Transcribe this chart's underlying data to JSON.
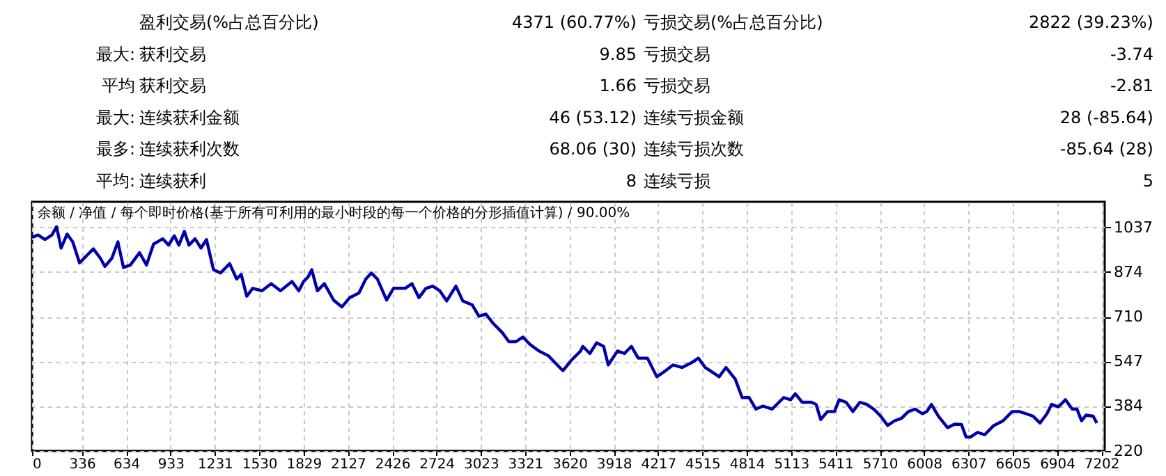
{
  "chart_data": [
    {
      "type": "other",
      "annotations": [
        "盈利交易(%占总百分比)",
        "4371 (60.77%)",
        "亏损交易(%占总百分比)",
        "2822 (39.23%)",
        "最大:",
        "获利交易",
        "9.85",
        "亏损交易",
        "-3.74",
        "平均",
        "获利交易",
        "1.66",
        "亏损交易",
        "-2.81",
        "最大:",
        "连续获利金额",
        "46 (53.12)",
        "连续亏损金额",
        "28 (-85.64)",
        "最多:",
        "连续获利次数",
        "68.06 (30)",
        "连续亏损次数",
        "-85.64 (28)",
        "平均:",
        "连续获利",
        "8",
        "连续亏损",
        "5"
      ]
    },
    {
      "type": "line",
      "title": "余额 / 净值 / 每个即时价格(基于所有可利用的最小时段的每一个价格的分形插值计算) / 90.00%",
      "color": "#0000a8",
      "x": [
        0,
        40,
        87,
        134,
        165,
        196,
        236,
        274,
        320,
        367,
        413,
        460,
        491,
        538,
        578,
        616,
        662,
        724,
        771,
        818,
        880,
        920,
        958,
        989,
        1026,
        1057,
        1098,
        1138,
        1175,
        1222,
        1269,
        1331,
        1378,
        1409,
        1446,
        1486,
        1549,
        1611,
        1673,
        1751,
        1797,
        1829,
        1860,
        1884,
        1922,
        1969,
        2031,
        2087,
        2140,
        2202,
        2248,
        2286,
        2326,
        2388,
        2435,
        2513,
        2559,
        2606,
        2653,
        2699,
        2746,
        2793,
        2855,
        2901,
        2964,
        3010,
        3057,
        3104,
        3166,
        3212,
        3259,
        3306,
        3352,
        3415,
        3477,
        3523,
        3576,
        3632,
        3695,
        3710,
        3757,
        3803,
        3850,
        3881,
        3943,
        3990,
        4037,
        4083,
        4145,
        4208,
        4254,
        4317,
        4379,
        4441,
        4488,
        4534,
        4581,
        4628,
        4674,
        4736,
        4783,
        4830,
        4876,
        4923,
        4985,
        5063,
        5110,
        5141,
        5187,
        5250,
        5281,
        5312,
        5358,
        5405,
        5436,
        5483,
        5529,
        5576,
        5623,
        5669,
        5716,
        5763,
        5809,
        5856,
        5903,
        5949,
        5996,
        6027,
        6058,
        6105,
        6167,
        6214,
        6260,
        6291,
        6322,
        6369,
        6416,
        6478,
        6540,
        6602,
        6649,
        6696,
        6742,
        6789,
        6836,
        6867,
        6913,
        6960,
        7007,
        7038,
        7069,
        7100,
        7147,
        7172
      ],
      "values": [
        1000,
        1009,
        992,
        1009,
        1039,
        961,
        1012,
        984,
        907,
        933,
        958,
        924,
        894,
        924,
        984,
        890,
        899,
        944,
        899,
        975,
        995,
        972,
        1006,
        972,
        1022,
        972,
        995,
        961,
        992,
        882,
        870,
        904,
        848,
        865,
        785,
        814,
        805,
        831,
        805,
        839,
        805,
        839,
        856,
        882,
        805,
        831,
        771,
        746,
        780,
        797,
        848,
        870,
        848,
        771,
        814,
        814,
        831,
        780,
        814,
        822,
        805,
        768,
        822,
        768,
        754,
        712,
        720,
        687,
        653,
        619,
        619,
        636,
        610,
        585,
        568,
        542,
        513,
        551,
        585,
        602,
        576,
        615,
        602,
        534,
        585,
        576,
        602,
        559,
        559,
        491,
        508,
        534,
        525,
        542,
        559,
        525,
        508,
        491,
        525,
        483,
        415,
        415,
        373,
        384,
        373,
        415,
        407,
        429,
        398,
        398,
        390,
        335,
        364,
        364,
        407,
        398,
        364,
        398,
        390,
        373,
        347,
        313,
        330,
        339,
        364,
        373,
        356,
        364,
        390,
        347,
        305,
        318,
        317,
        271,
        271,
        288,
        279,
        313,
        330,
        364,
        364,
        356,
        347,
        322,
        356,
        390,
        381,
        407,
        373,
        373,
        330,
        351,
        347,
        322
      ],
      "xlim": [
        0,
        7225
      ],
      "ylim": [
        220,
        1130
      ],
      "xticks": [
        0,
        336,
        634,
        933,
        1231,
        1530,
        1829,
        2127,
        2426,
        2724,
        3023,
        3321,
        3620,
        3918,
        4217,
        4515,
        4814,
        5113,
        5411,
        5710,
        6008,
        6307,
        6605,
        6904,
        7202
      ],
      "yticks": [
        220,
        384,
        547,
        710,
        874,
        1037
      ],
      "grid": true
    }
  ]
}
